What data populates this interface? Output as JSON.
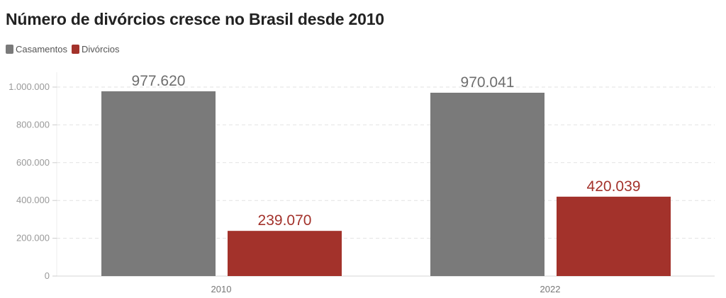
{
  "colors": {
    "casamentos": "#7a7a7a",
    "divorcios": "#a3322b",
    "grid": "#e2e2e2",
    "tick": "#999999"
  },
  "chart_data": {
    "type": "bar",
    "title": "Número de divórcios cresce no Brasil desde 2010",
    "categories": [
      "2010",
      "2022"
    ],
    "series": [
      {
        "name": "Casamentos",
        "values": [
          977620,
          970041
        ],
        "labels": [
          "977.620",
          "970.041"
        ]
      },
      {
        "name": "Divórcios",
        "values": [
          239070,
          420039
        ],
        "labels": [
          "239.070",
          "420.039"
        ]
      }
    ],
    "ylim": [
      0,
      1000000
    ],
    "yticks": [
      0,
      200000,
      400000,
      600000,
      800000,
      1000000
    ],
    "ytick_labels": [
      "0",
      "200.000",
      "400.000",
      "600.000",
      "800.000",
      "1.000.000"
    ],
    "legend_position": "top-left",
    "grid": true
  }
}
